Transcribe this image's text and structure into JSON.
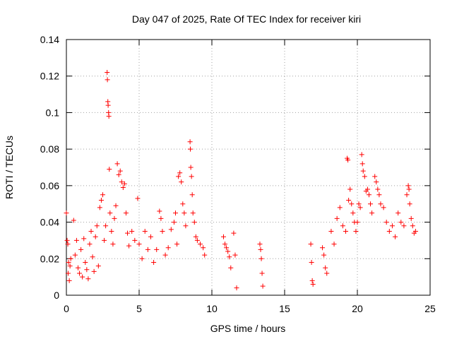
{
  "chart_data": {
    "type": "scatter",
    "title": "Day 047 of 2025, Rate Of TEC Index for receiver kiri",
    "xlabel": "GPS time / hours",
    "ylabel": "ROTI / TECUs",
    "xlim": [
      0,
      25
    ],
    "ylim": [
      0,
      0.14
    ],
    "x_ticks": [
      0,
      5,
      10,
      15,
      20,
      25
    ],
    "y_ticks": [
      0,
      0.02,
      0.04,
      0.06,
      0.08,
      0.1,
      0.12,
      0.14
    ],
    "x_tick_labels": [
      "0",
      "5",
      "10",
      "15",
      "20",
      "25"
    ],
    "y_tick_labels": [
      "0",
      "0.02",
      "0.04",
      "0.06",
      "0.08",
      "0.1",
      "0.12",
      "0.14"
    ],
    "grid": true,
    "marker": "+",
    "marker_color": "#ff0000",
    "series": [
      {
        "name": "ROTI",
        "points": [
          [
            0.0,
            0.045
          ],
          [
            0.05,
            0.03
          ],
          [
            0.1,
            0.028
          ],
          [
            0.12,
            0.012
          ],
          [
            0.15,
            0.018
          ],
          [
            0.2,
            0.008
          ],
          [
            0.25,
            0.016
          ],
          [
            0.3,
            0.02
          ],
          [
            0.5,
            0.041
          ],
          [
            0.6,
            0.022
          ],
          [
            0.7,
            0.03
          ],
          [
            0.8,
            0.015
          ],
          [
            0.9,
            0.012
          ],
          [
            1.0,
            0.025
          ],
          [
            1.1,
            0.01
          ],
          [
            1.2,
            0.031
          ],
          [
            1.3,
            0.018
          ],
          [
            1.4,
            0.014
          ],
          [
            1.5,
            0.009
          ],
          [
            1.6,
            0.028
          ],
          [
            1.7,
            0.035
          ],
          [
            1.8,
            0.021
          ],
          [
            1.9,
            0.013
          ],
          [
            2.0,
            0.032
          ],
          [
            2.1,
            0.038
          ],
          [
            2.2,
            0.016
          ],
          [
            2.3,
            0.048
          ],
          [
            2.4,
            0.052
          ],
          [
            2.5,
            0.055
          ],
          [
            2.6,
            0.03
          ],
          [
            2.7,
            0.038
          ],
          [
            2.8,
            0.122
          ],
          [
            2.82,
            0.118
          ],
          [
            2.85,
            0.106
          ],
          [
            2.87,
            0.104
          ],
          [
            2.9,
            0.1
          ],
          [
            2.92,
            0.098
          ],
          [
            2.95,
            0.069
          ],
          [
            3.0,
            0.045
          ],
          [
            3.1,
            0.035
          ],
          [
            3.2,
            0.028
          ],
          [
            3.3,
            0.042
          ],
          [
            3.4,
            0.049
          ],
          [
            3.5,
            0.072
          ],
          [
            3.6,
            0.066
          ],
          [
            3.7,
            0.068
          ],
          [
            3.8,
            0.062
          ],
          [
            3.9,
            0.059
          ],
          [
            4.0,
            0.061
          ],
          [
            4.1,
            0.045
          ],
          [
            4.2,
            0.034
          ],
          [
            4.3,
            0.027
          ],
          [
            4.5,
            0.035
          ],
          [
            4.7,
            0.03
          ],
          [
            4.9,
            0.053
          ],
          [
            5.0,
            0.028
          ],
          [
            5.2,
            0.02
          ],
          [
            5.4,
            0.035
          ],
          [
            5.6,
            0.025
          ],
          [
            5.8,
            0.032
          ],
          [
            6.0,
            0.018
          ],
          [
            6.2,
            0.025
          ],
          [
            6.4,
            0.046
          ],
          [
            6.5,
            0.042
          ],
          [
            6.6,
            0.035
          ],
          [
            6.8,
            0.022
          ],
          [
            7.0,
            0.026
          ],
          [
            7.2,
            0.036
          ],
          [
            7.4,
            0.04
          ],
          [
            7.5,
            0.045
          ],
          [
            7.6,
            0.028
          ],
          [
            7.7,
            0.065
          ],
          [
            7.8,
            0.067
          ],
          [
            7.9,
            0.062
          ],
          [
            8.0,
            0.05
          ],
          [
            8.1,
            0.045
          ],
          [
            8.2,
            0.038
          ],
          [
            8.5,
            0.084
          ],
          [
            8.52,
            0.08
          ],
          [
            8.55,
            0.07
          ],
          [
            8.6,
            0.065
          ],
          [
            8.65,
            0.055
          ],
          [
            8.7,
            0.045
          ],
          [
            8.8,
            0.04
          ],
          [
            8.9,
            0.032
          ],
          [
            9.0,
            0.03
          ],
          [
            9.2,
            0.028
          ],
          [
            9.4,
            0.026
          ],
          [
            9.5,
            0.022
          ],
          [
            10.8,
            0.032
          ],
          [
            10.9,
            0.028
          ],
          [
            11.0,
            0.026
          ],
          [
            11.1,
            0.024
          ],
          [
            11.2,
            0.021
          ],
          [
            11.3,
            0.015
          ],
          [
            11.5,
            0.034
          ],
          [
            11.6,
            0.022
          ],
          [
            11.7,
            0.004
          ],
          [
            13.3,
            0.028
          ],
          [
            13.35,
            0.025
          ],
          [
            13.4,
            0.02
          ],
          [
            13.45,
            0.012
          ],
          [
            13.5,
            0.005
          ],
          [
            16.8,
            0.028
          ],
          [
            16.85,
            0.018
          ],
          [
            16.9,
            0.008
          ],
          [
            16.95,
            0.006
          ],
          [
            17.6,
            0.026
          ],
          [
            17.7,
            0.022
          ],
          [
            17.8,
            0.015
          ],
          [
            17.9,
            0.012
          ],
          [
            18.2,
            0.035
          ],
          [
            18.4,
            0.028
          ],
          [
            18.6,
            0.042
          ],
          [
            18.8,
            0.048
          ],
          [
            19.0,
            0.038
          ],
          [
            19.2,
            0.035
          ],
          [
            19.3,
            0.075
          ],
          [
            19.35,
            0.074
          ],
          [
            19.4,
            0.052
          ],
          [
            19.5,
            0.058
          ],
          [
            19.6,
            0.05
          ],
          [
            19.7,
            0.045
          ],
          [
            19.8,
            0.04
          ],
          [
            19.9,
            0.035
          ],
          [
            20.0,
            0.04
          ],
          [
            20.1,
            0.05
          ],
          [
            20.2,
            0.048
          ],
          [
            20.3,
            0.077
          ],
          [
            20.35,
            0.072
          ],
          [
            20.4,
            0.068
          ],
          [
            20.5,
            0.065
          ],
          [
            20.6,
            0.057
          ],
          [
            20.7,
            0.058
          ],
          [
            20.8,
            0.055
          ],
          [
            20.9,
            0.05
          ],
          [
            21.0,
            0.045
          ],
          [
            21.2,
            0.065
          ],
          [
            21.3,
            0.062
          ],
          [
            21.4,
            0.058
          ],
          [
            21.5,
            0.055
          ],
          [
            21.6,
            0.05
          ],
          [
            21.8,
            0.048
          ],
          [
            22.0,
            0.04
          ],
          [
            22.2,
            0.035
          ],
          [
            22.4,
            0.038
          ],
          [
            22.6,
            0.032
          ],
          [
            22.8,
            0.045
          ],
          [
            23.0,
            0.04
          ],
          [
            23.2,
            0.038
          ],
          [
            23.4,
            0.055
          ],
          [
            23.5,
            0.06
          ],
          [
            23.55,
            0.058
          ],
          [
            23.6,
            0.05
          ],
          [
            23.7,
            0.042
          ],
          [
            23.8,
            0.038
          ],
          [
            23.9,
            0.034
          ],
          [
            24.0,
            0.035
          ]
        ]
      }
    ]
  }
}
